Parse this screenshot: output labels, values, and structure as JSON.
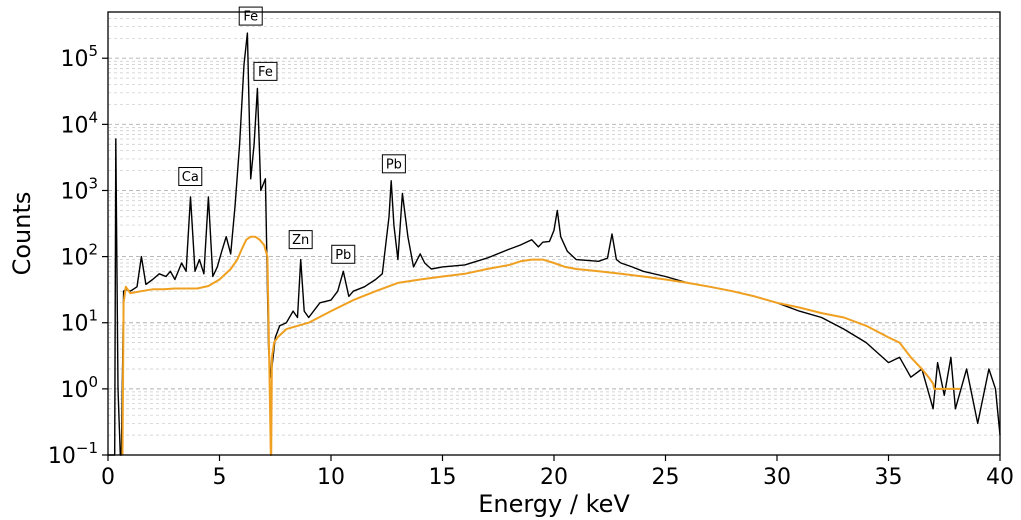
{
  "chart_data": {
    "type": "line",
    "title": "",
    "xlabel": "Energy  /  keV",
    "ylabel": "Counts",
    "xlim": [
      0,
      40
    ],
    "ylim": [
      0.1,
      500000
    ],
    "yscale": "log",
    "x_ticks": [
      0,
      5,
      10,
      15,
      20,
      25,
      30,
      35,
      40
    ],
    "x_tick_labels": [
      "0",
      "5",
      "10",
      "15",
      "20",
      "25",
      "30",
      "35",
      "40"
    ],
    "y_ticks": [
      {
        "value": 0.1,
        "base": "10",
        "exp": "−1"
      },
      {
        "value": 1,
        "base": "10",
        "exp": "0"
      },
      {
        "value": 10,
        "base": "10",
        "exp": "1"
      },
      {
        "value": 100,
        "base": "10",
        "exp": "2"
      },
      {
        "value": 1000,
        "base": "10",
        "exp": "3"
      },
      {
        "value": 10000,
        "base": "10",
        "exp": "4"
      },
      {
        "value": 100000,
        "base": "10",
        "exp": "5"
      }
    ],
    "grid": true,
    "series": [
      {
        "color": "#000000",
        "style": "measured spectrum",
        "x": [
          0.0,
          0.3,
          0.35,
          0.45,
          0.55,
          0.6,
          0.7,
          0.8,
          1.0,
          1.3,
          1.5,
          1.7,
          2.0,
          2.3,
          2.6,
          2.8,
          3.0,
          3.3,
          3.5,
          3.7,
          3.9,
          4.1,
          4.3,
          4.5,
          4.7,
          4.9,
          5.1,
          5.3,
          5.5,
          5.7,
          5.9,
          6.1,
          6.25,
          6.4,
          6.55,
          6.7,
          6.85,
          7.06,
          7.2,
          7.3,
          7.5,
          7.7,
          8.0,
          8.3,
          8.5,
          8.64,
          8.8,
          9.0,
          9.5,
          10.0,
          10.3,
          10.55,
          10.8,
          11.0,
          11.5,
          12.0,
          12.3,
          12.6,
          12.7,
          12.82,
          13.0,
          13.2,
          13.45,
          13.7,
          14.0,
          14.2,
          14.5,
          15.0,
          16.0,
          17.0,
          18.0,
          18.5,
          19.0,
          19.3,
          19.5,
          19.8,
          20.0,
          20.15,
          20.3,
          20.6,
          21.0,
          22.0,
          22.4,
          22.6,
          22.8,
          23.0,
          23.5,
          24.0,
          25.0,
          26.0,
          27.0,
          28.0,
          29.0,
          30.0,
          31.0,
          32.0,
          33.0,
          34.0,
          35.0,
          35.5,
          36.0,
          36.5,
          37.0,
          37.2,
          37.5,
          37.8,
          38.0,
          38.5,
          39.0,
          39.5,
          39.8,
          40.0
        ],
        "y": [
          0.1,
          0.1,
          6000,
          1.0,
          0.1,
          0.1,
          30,
          32,
          30,
          35,
          100,
          38,
          45,
          55,
          50,
          60,
          45,
          80,
          60,
          800,
          60,
          90,
          55,
          800,
          50,
          70,
          120,
          200,
          110,
          600,
          5000,
          80000,
          240000,
          1500,
          5000,
          35000,
          1000,
          1500,
          4,
          1.5,
          6,
          9,
          10,
          15,
          12,
          90,
          15,
          12,
          20,
          22,
          30,
          60,
          25,
          30,
          35,
          45,
          55,
          400,
          1400,
          300,
          90,
          900,
          200,
          70,
          110,
          80,
          65,
          70,
          75,
          95,
          130,
          150,
          180,
          140,
          165,
          170,
          250,
          500,
          200,
          120,
          90,
          85,
          95,
          220,
          90,
          80,
          70,
          60,
          50,
          40,
          35,
          30,
          25,
          20,
          15,
          12,
          8,
          5,
          2.5,
          3,
          1.5,
          2,
          0.5,
          2.5,
          0.8,
          3,
          0.5,
          2,
          0.3,
          2,
          1,
          0.2
        ]
      },
      {
        "color": "#f0a020",
        "style": "background fit",
        "x": [
          0.65,
          0.7,
          0.8,
          1.0,
          1.5,
          2.0,
          2.5,
          3.0,
          3.5,
          4.0,
          4.5,
          5.0,
          5.5,
          5.8,
          6.0,
          6.2,
          6.4,
          6.6,
          6.8,
          7.0,
          7.15,
          7.2,
          7.25,
          7.3,
          7.32,
          7.35,
          7.45,
          7.6,
          8.0,
          9.0,
          10.0,
          11.0,
          12.0,
          13.0,
          14.0,
          15.0,
          16.0,
          17.0,
          18.0,
          18.5,
          19.0,
          19.5,
          20.0,
          20.5,
          21.0,
          22.0,
          23.0,
          24.0,
          25.0,
          26.0,
          27.0,
          28.0,
          29.0,
          30.0,
          31.0,
          32.0,
          33.0,
          34.0,
          35.0,
          35.5,
          36.0,
          36.5,
          36.8,
          37.0,
          37.05,
          37.5,
          38.0,
          38.2
        ],
        "y": [
          0.1,
          20,
          35,
          28,
          30,
          32,
          32,
          33,
          33,
          33,
          36,
          45,
          65,
          90,
          130,
          180,
          200,
          200,
          180,
          150,
          100,
          10,
          1,
          0.1,
          0.1,
          3,
          5,
          6,
          8,
          10,
          15,
          22,
          30,
          40,
          45,
          50,
          55,
          65,
          75,
          85,
          90,
          90,
          80,
          70,
          65,
          60,
          55,
          50,
          45,
          40,
          35,
          30,
          25,
          20,
          17,
          14,
          12,
          9,
          6,
          5,
          3,
          2,
          1.5,
          1.2,
          1.0,
          1.0,
          1.0,
          1.0
        ]
      }
    ],
    "annotations": [
      {
        "label": "Fe",
        "x": 6.4,
        "y": 240000
      },
      {
        "label": "Fe",
        "x": 7.06,
        "y": 35000
      },
      {
        "label": "Ca",
        "x": 3.69,
        "y": 900
      },
      {
        "label": "Pb",
        "x": 12.82,
        "y": 1400
      },
      {
        "label": "Zn",
        "x": 8.64,
        "y": 100
      },
      {
        "label": "Pb",
        "x": 10.55,
        "y": 60
      }
    ]
  }
}
